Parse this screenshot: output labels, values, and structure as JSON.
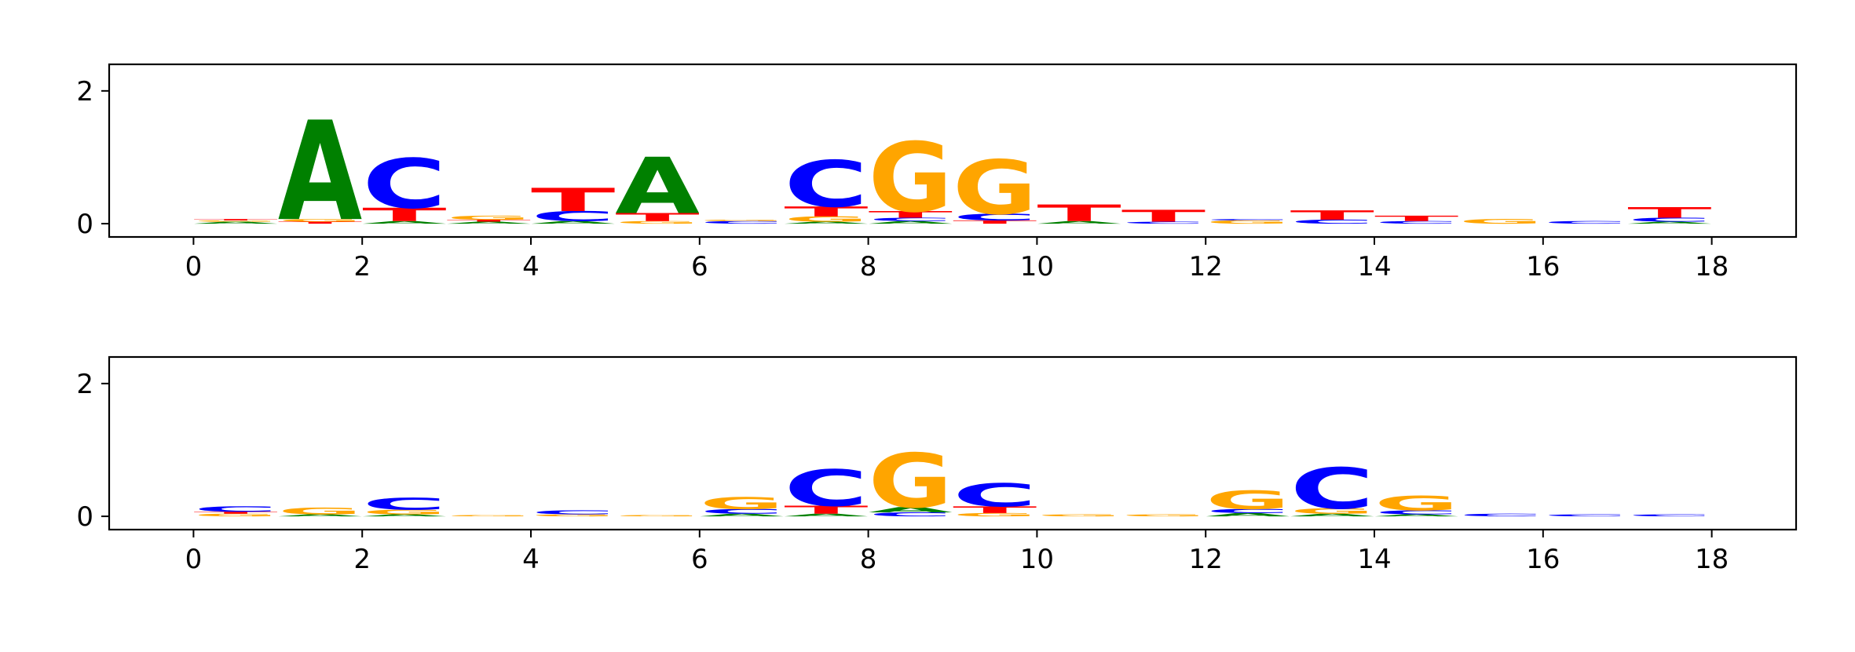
{
  "chart_data": [
    {
      "type": "sequence-logo",
      "title": "",
      "xlabel": "",
      "ylabel": "",
      "xlim": [
        -1,
        19
      ],
      "ylim": [
        -0.2,
        2.4
      ],
      "xticks": [
        "0",
        "2",
        "4",
        "6",
        "8",
        "10",
        "12",
        "14",
        "16",
        "18"
      ],
      "yticks": [
        "0",
        "2"
      ],
      "grid": false,
      "letter_colors": {
        "A": "#008000",
        "C": "#0000ff",
        "G": "#ffa500",
        "T": "#ff0000"
      },
      "positions": [
        {
          "x": 0,
          "letters": [
            {
              "base": "A",
              "height": 0.03
            },
            {
              "base": "G",
              "height": 0.02
            },
            {
              "base": "T",
              "height": 0.02
            }
          ]
        },
        {
          "x": 1,
          "letters": [
            {
              "base": "T",
              "height": 0.03
            },
            {
              "base": "G",
              "height": 0.04
            },
            {
              "base": "A",
              "height": 1.5
            }
          ]
        },
        {
          "x": 2,
          "letters": [
            {
              "base": "A",
              "height": 0.04
            },
            {
              "base": "T",
              "height": 0.2
            },
            {
              "base": "C",
              "height": 0.75
            }
          ]
        },
        {
          "x": 3,
          "letters": [
            {
              "base": "A",
              "height": 0.03
            },
            {
              "base": "T",
              "height": 0.03
            },
            {
              "base": "G",
              "height": 0.06
            }
          ]
        },
        {
          "x": 4,
          "letters": [
            {
              "base": "A",
              "height": 0.04
            },
            {
              "base": "C",
              "height": 0.15
            },
            {
              "base": "T",
              "height": 0.35
            }
          ]
        },
        {
          "x": 5,
          "letters": [
            {
              "base": "G",
              "height": 0.04
            },
            {
              "base": "T",
              "height": 0.12
            },
            {
              "base": "A",
              "height": 0.85
            }
          ]
        },
        {
          "x": 6,
          "letters": [
            {
              "base": "C",
              "height": 0.04
            },
            {
              "base": "G",
              "height": 0.02
            }
          ]
        },
        {
          "x": 7,
          "letters": [
            {
              "base": "A",
              "height": 0.03
            },
            {
              "base": "G",
              "height": 0.08
            },
            {
              "base": "T",
              "height": 0.15
            },
            {
              "base": "C",
              "height": 0.7
            }
          ]
        },
        {
          "x": 8,
          "letters": [
            {
              "base": "A",
              "height": 0.04
            },
            {
              "base": "C",
              "height": 0.05
            },
            {
              "base": "T",
              "height": 0.1
            },
            {
              "base": "G",
              "height": 1.05
            }
          ]
        },
        {
          "x": 9,
          "letters": [
            {
              "base": "T",
              "height": 0.05
            },
            {
              "base": "C",
              "height": 0.1
            },
            {
              "base": "G",
              "height": 0.82
            }
          ]
        },
        {
          "x": 10,
          "letters": [
            {
              "base": "A",
              "height": 0.04
            },
            {
              "base": "T",
              "height": 0.25
            }
          ]
        },
        {
          "x": 11,
          "letters": [
            {
              "base": "C",
              "height": 0.03
            },
            {
              "base": "T",
              "height": 0.18
            }
          ]
        },
        {
          "x": 12,
          "letters": [
            {
              "base": "G",
              "height": 0.05
            },
            {
              "base": "C",
              "height": 0.02
            }
          ]
        },
        {
          "x": 13,
          "letters": [
            {
              "base": "C",
              "height": 0.06
            },
            {
              "base": "T",
              "height": 0.14
            }
          ]
        },
        {
          "x": 14,
          "letters": [
            {
              "base": "C",
              "height": 0.04
            },
            {
              "base": "T",
              "height": 0.08
            }
          ]
        },
        {
          "x": 15,
          "letters": [
            {
              "base": "G",
              "height": 0.07
            }
          ]
        },
        {
          "x": 16,
          "letters": [
            {
              "base": "C",
              "height": 0.04
            }
          ]
        },
        {
          "x": 17,
          "letters": [
            {
              "base": "A",
              "height": 0.03
            },
            {
              "base": "C",
              "height": 0.06
            },
            {
              "base": "T",
              "height": 0.16
            }
          ]
        }
      ]
    },
    {
      "type": "sequence-logo",
      "title": "",
      "xlabel": "",
      "ylabel": "",
      "xlim": [
        -1,
        19
      ],
      "ylim": [
        -0.2,
        2.4
      ],
      "xticks": [
        "0",
        "2",
        "4",
        "6",
        "8",
        "10",
        "12",
        "14",
        "16",
        "18"
      ],
      "yticks": [
        "0",
        "2"
      ],
      "grid": false,
      "letter_colors": {
        "A": "#008000",
        "C": "#0000ff",
        "G": "#ffa500",
        "T": "#ff0000"
      },
      "positions": [
        {
          "x": 0,
          "letters": [
            {
              "base": "G",
              "height": 0.04
            },
            {
              "base": "T",
              "height": 0.03
            },
            {
              "base": "C",
              "height": 0.08
            }
          ]
        },
        {
          "x": 1,
          "letters": [
            {
              "base": "A",
              "height": 0.03
            },
            {
              "base": "G",
              "height": 0.1
            }
          ]
        },
        {
          "x": 2,
          "letters": [
            {
              "base": "A",
              "height": 0.03
            },
            {
              "base": "G",
              "height": 0.07
            },
            {
              "base": "C",
              "height": 0.18
            }
          ]
        },
        {
          "x": 3,
          "letters": [
            {
              "base": "G",
              "height": 0.02
            }
          ]
        },
        {
          "x": 4,
          "letters": [
            {
              "base": "G",
              "height": 0.03
            },
            {
              "base": "C",
              "height": 0.06
            }
          ]
        },
        {
          "x": 5,
          "letters": [
            {
              "base": "G",
              "height": 0.02
            }
          ]
        },
        {
          "x": 6,
          "letters": [
            {
              "base": "A",
              "height": 0.04
            },
            {
              "base": "C",
              "height": 0.07
            },
            {
              "base": "G",
              "height": 0.18
            }
          ]
        },
        {
          "x": 7,
          "letters": [
            {
              "base": "A",
              "height": 0.04
            },
            {
              "base": "T",
              "height": 0.12
            },
            {
              "base": "C",
              "height": 0.55
            }
          ]
        },
        {
          "x": 8,
          "letters": [
            {
              "base": "C",
              "height": 0.06
            },
            {
              "base": "A",
              "height": 0.08
            },
            {
              "base": "G",
              "height": 0.82
            }
          ]
        },
        {
          "x": 9,
          "letters": [
            {
              "base": "G",
              "height": 0.05
            },
            {
              "base": "T",
              "height": 0.1
            },
            {
              "base": "C",
              "height": 0.35
            }
          ]
        },
        {
          "x": 10,
          "letters": [
            {
              "base": "G",
              "height": 0.03
            }
          ]
        },
        {
          "x": 11,
          "letters": [
            {
              "base": "G",
              "height": 0.03
            }
          ]
        },
        {
          "x": 12,
          "letters": [
            {
              "base": "A",
              "height": 0.05
            },
            {
              "base": "C",
              "height": 0.06
            },
            {
              "base": "G",
              "height": 0.28
            }
          ]
        },
        {
          "x": 13,
          "letters": [
            {
              "base": "A",
              "height": 0.04
            },
            {
              "base": "G",
              "height": 0.08
            },
            {
              "base": "C",
              "height": 0.62
            }
          ]
        },
        {
          "x": 14,
          "letters": [
            {
              "base": "A",
              "height": 0.03
            },
            {
              "base": "C",
              "height": 0.06
            },
            {
              "base": "G",
              "height": 0.22
            }
          ]
        },
        {
          "x": 15,
          "letters": [
            {
              "base": "C",
              "height": 0.04
            }
          ]
        },
        {
          "x": 16,
          "letters": [
            {
              "base": "C",
              "height": 0.03
            }
          ]
        },
        {
          "x": 17,
          "letters": [
            {
              "base": "C",
              "height": 0.03
            }
          ]
        }
      ]
    }
  ]
}
